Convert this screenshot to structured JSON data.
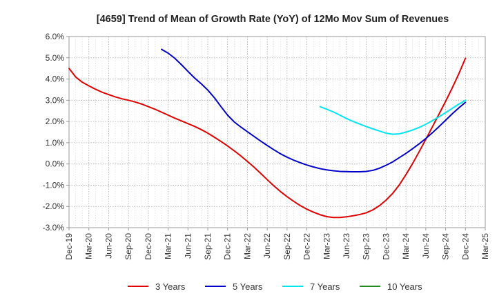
{
  "chart_data": {
    "type": "line",
    "title": "[4659]  Trend of Mean of Growth Rate (YoY) of 12Mo Mov Sum of Revenues",
    "xlabel": "",
    "ylabel": "",
    "ylim": [
      -3.0,
      6.0
    ],
    "yticks": [
      {
        "value": 6.0,
        "label": "6.0%"
      },
      {
        "value": 5.0,
        "label": "5.0%"
      },
      {
        "value": 4.0,
        "label": "4.0%"
      },
      {
        "value": 3.0,
        "label": "3.0%"
      },
      {
        "value": 2.0,
        "label": "2.0%"
      },
      {
        "value": 1.0,
        "label": "1.0%"
      },
      {
        "value": 0.0,
        "label": "0.0%"
      },
      {
        "value": -1.0,
        "label": "-1.0%"
      },
      {
        "value": -2.0,
        "label": "-2.0%"
      },
      {
        "value": -3.0,
        "label": "-3.0%"
      }
    ],
    "x_index_range": [
      0,
      63
    ],
    "xticks": [
      {
        "index": 0,
        "label": "Dec-19"
      },
      {
        "index": 3,
        "label": "Mar-20"
      },
      {
        "index": 6,
        "label": "Jun-20"
      },
      {
        "index": 9,
        "label": "Sep-20"
      },
      {
        "index": 12,
        "label": "Dec-20"
      },
      {
        "index": 15,
        "label": "Mar-21"
      },
      {
        "index": 18,
        "label": "Jun-21"
      },
      {
        "index": 21,
        "label": "Sep-21"
      },
      {
        "index": 24,
        "label": "Dec-21"
      },
      {
        "index": 27,
        "label": "Mar-22"
      },
      {
        "index": 30,
        "label": "Jun-22"
      },
      {
        "index": 33,
        "label": "Sep-22"
      },
      {
        "index": 36,
        "label": "Dec-22"
      },
      {
        "index": 39,
        "label": "Mar-23"
      },
      {
        "index": 42,
        "label": "Jun-23"
      },
      {
        "index": 45,
        "label": "Sep-23"
      },
      {
        "index": 48,
        "label": "Dec-23"
      },
      {
        "index": 51,
        "label": "Mar-24"
      },
      {
        "index": 54,
        "label": "Jun-24"
      },
      {
        "index": 57,
        "label": "Sep-24"
      },
      {
        "index": 60,
        "label": "Dec-24"
      },
      {
        "index": 63,
        "label": "Mar-25"
      }
    ],
    "series": [
      {
        "name": "3 Years",
        "color": "#e00000",
        "points": [
          [
            0,
            4.5
          ],
          [
            1,
            4.1
          ],
          [
            2,
            3.85
          ],
          [
            3,
            3.68
          ],
          [
            4,
            3.52
          ],
          [
            5,
            3.38
          ],
          [
            6,
            3.27
          ],
          [
            7,
            3.16
          ],
          [
            8,
            3.07
          ],
          [
            9,
            3.0
          ],
          [
            10,
            2.92
          ],
          [
            11,
            2.82
          ],
          [
            12,
            2.7
          ],
          [
            13,
            2.58
          ],
          [
            14,
            2.44
          ],
          [
            15,
            2.3
          ],
          [
            16,
            2.16
          ],
          [
            17,
            2.03
          ],
          [
            18,
            1.9
          ],
          [
            19,
            1.77
          ],
          [
            20,
            1.62
          ],
          [
            21,
            1.45
          ],
          [
            22,
            1.26
          ],
          [
            23,
            1.06
          ],
          [
            24,
            0.85
          ],
          [
            25,
            0.62
          ],
          [
            26,
            0.38
          ],
          [
            27,
            0.12
          ],
          [
            28,
            -0.15
          ],
          [
            29,
            -0.44
          ],
          [
            30,
            -0.74
          ],
          [
            31,
            -1.03
          ],
          [
            32,
            -1.3
          ],
          [
            33,
            -1.54
          ],
          [
            34,
            -1.76
          ],
          [
            35,
            -1.96
          ],
          [
            36,
            -2.13
          ],
          [
            37,
            -2.27
          ],
          [
            38,
            -2.39
          ],
          [
            39,
            -2.48
          ],
          [
            40,
            -2.52
          ],
          [
            41,
            -2.52
          ],
          [
            42,
            -2.49
          ],
          [
            43,
            -2.44
          ],
          [
            44,
            -2.38
          ],
          [
            45,
            -2.3
          ],
          [
            46,
            -2.16
          ],
          [
            47,
            -1.96
          ],
          [
            48,
            -1.7
          ],
          [
            49,
            -1.38
          ],
          [
            50,
            -0.98
          ],
          [
            51,
            -0.5
          ],
          [
            52,
            0.02
          ],
          [
            53,
            0.58
          ],
          [
            54,
            1.16
          ],
          [
            55,
            1.75
          ],
          [
            56,
            2.35
          ],
          [
            57,
            2.95
          ],
          [
            58,
            3.58
          ],
          [
            59,
            4.25
          ],
          [
            60,
            4.98
          ]
        ]
      },
      {
        "name": "5 Years",
        "color": "#0000c8",
        "points": [
          [
            14,
            5.4
          ],
          [
            15,
            5.22
          ],
          [
            16,
            4.98
          ],
          [
            17,
            4.68
          ],
          [
            18,
            4.36
          ],
          [
            19,
            4.05
          ],
          [
            20,
            3.78
          ],
          [
            21,
            3.48
          ],
          [
            22,
            3.12
          ],
          [
            23,
            2.7
          ],
          [
            24,
            2.3
          ],
          [
            25,
            1.98
          ],
          [
            26,
            1.74
          ],
          [
            27,
            1.52
          ],
          [
            28,
            1.3
          ],
          [
            29,
            1.08
          ],
          [
            30,
            0.87
          ],
          [
            31,
            0.67
          ],
          [
            32,
            0.48
          ],
          [
            33,
            0.32
          ],
          [
            34,
            0.18
          ],
          [
            35,
            0.06
          ],
          [
            36,
            -0.05
          ],
          [
            37,
            -0.14
          ],
          [
            38,
            -0.22
          ],
          [
            39,
            -0.28
          ],
          [
            40,
            -0.32
          ],
          [
            41,
            -0.35
          ],
          [
            42,
            -0.36
          ],
          [
            43,
            -0.37
          ],
          [
            44,
            -0.37
          ],
          [
            45,
            -0.35
          ],
          [
            46,
            -0.3
          ],
          [
            47,
            -0.2
          ],
          [
            48,
            -0.06
          ],
          [
            49,
            0.1
          ],
          [
            50,
            0.3
          ],
          [
            51,
            0.5
          ],
          [
            52,
            0.72
          ],
          [
            53,
            0.95
          ],
          [
            54,
            1.2
          ],
          [
            55,
            1.47
          ],
          [
            56,
            1.76
          ],
          [
            57,
            2.06
          ],
          [
            58,
            2.36
          ],
          [
            59,
            2.64
          ],
          [
            60,
            2.9
          ]
        ]
      },
      {
        "name": "7 Years",
        "color": "#00e5ee",
        "points": [
          [
            38,
            2.7
          ],
          [
            39,
            2.58
          ],
          [
            40,
            2.45
          ],
          [
            41,
            2.3
          ],
          [
            42,
            2.14
          ],
          [
            43,
            2.0
          ],
          [
            44,
            1.88
          ],
          [
            45,
            1.76
          ],
          [
            46,
            1.65
          ],
          [
            47,
            1.55
          ],
          [
            48,
            1.45
          ],
          [
            49,
            1.4
          ],
          [
            50,
            1.42
          ],
          [
            51,
            1.5
          ],
          [
            52,
            1.6
          ],
          [
            53,
            1.72
          ],
          [
            54,
            1.87
          ],
          [
            55,
            2.04
          ],
          [
            56,
            2.22
          ],
          [
            57,
            2.42
          ],
          [
            58,
            2.62
          ],
          [
            59,
            2.82
          ],
          [
            60,
            3.0
          ]
        ]
      },
      {
        "name": "10 Years",
        "color": "#228b22",
        "points": []
      }
    ],
    "legend_position": "bottom-center",
    "grid": true
  }
}
